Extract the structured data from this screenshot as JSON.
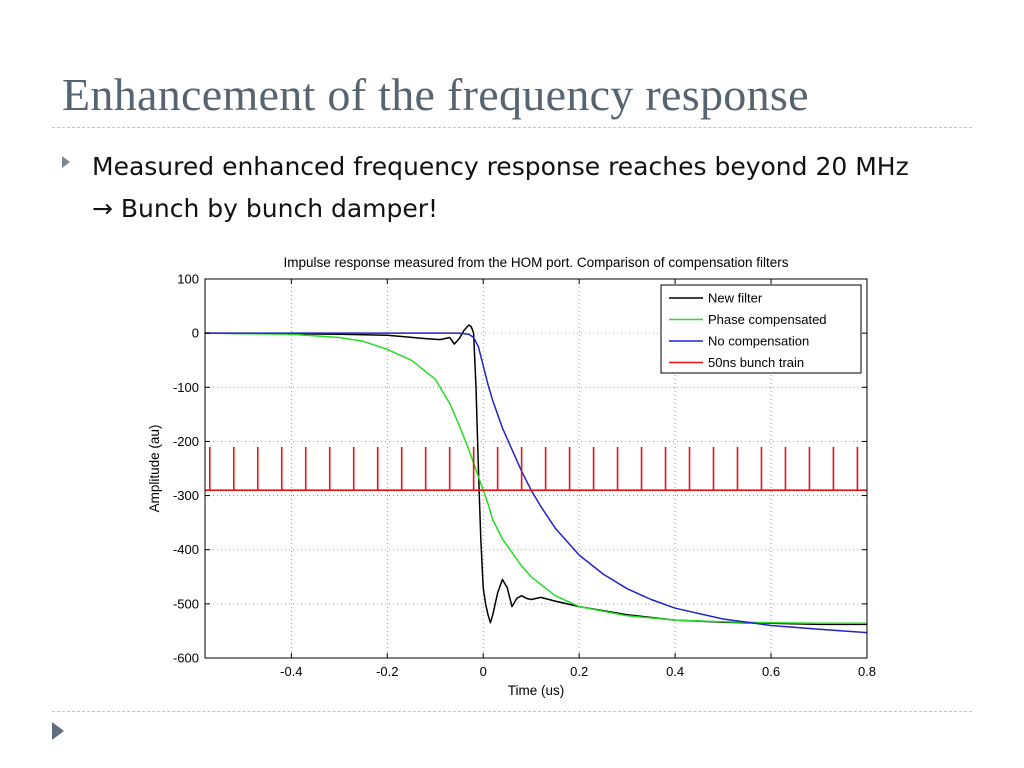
{
  "slide": {
    "title": "Enhancement of the frequency response",
    "bullet_part1": "Measured enhanced frequency response reaches beyond 20 MHz",
    "bullet_arrow": "→",
    "bullet_part2": "Bunch by bunch damper!"
  },
  "chart_data": {
    "type": "line",
    "title": "Impulse response measured from the HOM port. Comparison of compensation filters",
    "xlabel": "Time (us)",
    "ylabel": "Amplitude (au)",
    "xlim": [
      -0.58,
      0.8
    ],
    "ylim": [
      -600,
      100
    ],
    "x_ticks": [
      -0.4,
      -0.2,
      0,
      0.2,
      0.4,
      0.6,
      0.8
    ],
    "y_ticks": [
      100,
      0,
      -100,
      -200,
      -300,
      -400,
      -500,
      -600
    ],
    "grid": true,
    "grid_style": "dotted",
    "legend_position": "top-right",
    "series": [
      {
        "name": "New filter",
        "color": "#000000",
        "x": [
          -0.58,
          -0.4,
          -0.3,
          -0.2,
          -0.12,
          -0.09,
          -0.07,
          -0.06,
          -0.05,
          -0.04,
          -0.03,
          -0.025,
          -0.02,
          -0.015,
          -0.01,
          -0.005,
          0.0,
          0.005,
          0.01,
          0.015,
          0.02,
          0.03,
          0.04,
          0.05,
          0.06,
          0.07,
          0.08,
          0.09,
          0.1,
          0.12,
          0.15,
          0.2,
          0.3,
          0.4,
          0.5,
          0.6,
          0.7,
          0.8
        ],
        "y": [
          0,
          -1,
          -2,
          -4,
          -10,
          -12,
          -8,
          -20,
          -10,
          5,
          15,
          12,
          0,
          -100,
          -250,
          -380,
          -470,
          -500,
          -520,
          -535,
          -520,
          -480,
          -455,
          -470,
          -505,
          -490,
          -485,
          -490,
          -492,
          -488,
          -495,
          -505,
          -520,
          -530,
          -534,
          -536,
          -538,
          -538
        ]
      },
      {
        "name": "Phase compensated",
        "color": "#22dd22",
        "x": [
          -0.58,
          -0.4,
          -0.3,
          -0.25,
          -0.2,
          -0.15,
          -0.1,
          -0.07,
          -0.05,
          -0.03,
          -0.02,
          -0.01,
          0.0,
          0.01,
          0.02,
          0.04,
          0.06,
          0.08,
          0.1,
          0.15,
          0.2,
          0.3,
          0.4,
          0.5,
          0.6,
          0.7,
          0.8
        ],
        "y": [
          0,
          -2,
          -8,
          -15,
          -30,
          -50,
          -85,
          -130,
          -170,
          -215,
          -240,
          -265,
          -290,
          -315,
          -345,
          -380,
          -405,
          -430,
          -450,
          -485,
          -505,
          -522,
          -530,
          -533,
          -535,
          -536,
          -536
        ]
      },
      {
        "name": "No compensation",
        "color": "#2222cc",
        "x": [
          -0.58,
          -0.2,
          -0.05,
          -0.03,
          -0.02,
          -0.01,
          0.0,
          0.01,
          0.02,
          0.04,
          0.06,
          0.08,
          0.1,
          0.12,
          0.15,
          0.2,
          0.25,
          0.3,
          0.35,
          0.4,
          0.5,
          0.6,
          0.7,
          0.8
        ],
        "y": [
          0,
          0,
          0,
          -2,
          -8,
          -25,
          -60,
          -95,
          -125,
          -175,
          -215,
          -255,
          -290,
          -320,
          -360,
          -410,
          -445,
          -472,
          -492,
          -508,
          -528,
          -540,
          -547,
          -553
        ]
      },
      {
        "name": "50ns bunch train",
        "color": "#ee1111",
        "baseline": -290,
        "peak": -210,
        "pulse_x": [
          -0.57,
          -0.52,
          -0.47,
          -0.42,
          -0.37,
          -0.32,
          -0.27,
          -0.22,
          -0.17,
          -0.12,
          -0.07,
          -0.02,
          0.03,
          0.08,
          0.13,
          0.18,
          0.23,
          0.28,
          0.33,
          0.38,
          0.43,
          0.48,
          0.53,
          0.58,
          0.63,
          0.68,
          0.73,
          0.78
        ]
      }
    ]
  }
}
